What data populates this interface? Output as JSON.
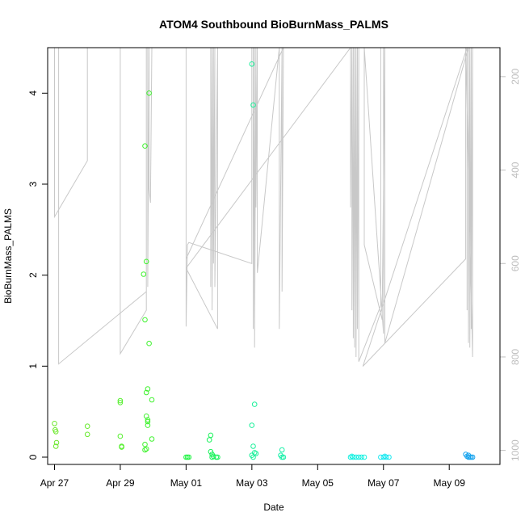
{
  "chart_data": {
    "type": "scatter",
    "title": "ATOM4 Southbound BioBurnMass_PALMS",
    "xlabel": "Date",
    "ylabel": "BioBurnMass_PALMS",
    "x_ticks": [
      "Apr 27",
      "Apr 29",
      "May 01",
      "May 03",
      "May 05",
      "May 07",
      "May 09"
    ],
    "xlim": [
      "2017-04-26T19:00",
      "2017-05-10T13:00"
    ],
    "ylim": [
      -0.08,
      4.5
    ],
    "y_ticks": [
      0,
      1,
      2,
      3,
      4
    ],
    "y2": {
      "label": "",
      "ticks": [
        200,
        400,
        600,
        800,
        1000
      ],
      "range_top_to_bottom": [
        138,
        1030
      ],
      "color": "#bdbdbd"
    },
    "grid": false,
    "series": [
      {
        "kind": "points",
        "points": [
          [
            "2017-04-27T00:00",
            0.37,
            "#6be82a"
          ],
          [
            "2017-04-27T00:30",
            0.3,
            "#6be82a"
          ],
          [
            "2017-04-27T01:00",
            0.28,
            "#6be82a"
          ],
          [
            "2017-04-27T01:30",
            0.16,
            "#6be82a"
          ],
          [
            "2017-04-27T01:00",
            0.12,
            "#6be82a"
          ],
          [
            "2017-04-28T00:00",
            0.34,
            "#66ea2c"
          ],
          [
            "2017-04-28T00:00",
            0.25,
            "#66ea2c"
          ],
          [
            "2017-04-29T00:00",
            0.62,
            "#55ef2d"
          ],
          [
            "2017-04-29T00:00",
            0.6,
            "#55ef2d"
          ],
          [
            "2017-04-29T00:00",
            0.23,
            "#55ef2d"
          ],
          [
            "2017-04-29T01:00",
            0.12,
            "#55ef2d"
          ],
          [
            "2017-04-29T01:00",
            0.11,
            "#55ef2d"
          ],
          [
            "2017-04-29T18:00",
            3.42,
            "#40f22f"
          ],
          [
            "2017-04-29T17:00",
            2.01,
            "#40f22f"
          ],
          [
            "2017-04-29T19:00",
            2.15,
            "#40f22f"
          ],
          [
            "2017-04-29T18:00",
            1.51,
            "#40f22f"
          ],
          [
            "2017-04-29T21:00",
            4.0,
            "#40f22f"
          ],
          [
            "2017-04-29T21:00",
            1.25,
            "#40f22f"
          ],
          [
            "2017-04-29T20:00",
            0.75,
            "#40f22f"
          ],
          [
            "2017-04-29T19:00",
            0.71,
            "#40f22f"
          ],
          [
            "2017-04-29T23:00",
            0.63,
            "#40f22f"
          ],
          [
            "2017-04-29T19:00",
            0.45,
            "#40f22f"
          ],
          [
            "2017-04-29T20:00",
            0.41,
            "#40f22f"
          ],
          [
            "2017-04-29T20:00",
            0.39,
            "#40f22f"
          ],
          [
            "2017-04-29T20:00",
            0.35,
            "#40f22f"
          ],
          [
            "2017-04-29T23:00",
            0.2,
            "#40f22f"
          ],
          [
            "2017-04-29T18:00",
            0.14,
            "#40f22f"
          ],
          [
            "2017-04-29T19:00",
            0.09,
            "#40f22f"
          ],
          [
            "2017-04-29T18:00",
            0.08,
            "#40f22f"
          ],
          [
            "2017-05-01T00:00",
            0.0,
            "#22f445"
          ],
          [
            "2017-05-01T01:00",
            0.0,
            "#22f445"
          ],
          [
            "2017-05-01T02:00",
            0.0,
            "#22f445"
          ],
          [
            "2017-05-01T18:00",
            0.24,
            "#18f25a"
          ],
          [
            "2017-05-01T17:00",
            0.19,
            "#18f25a"
          ],
          [
            "2017-05-01T18:00",
            0.06,
            "#18f25a"
          ],
          [
            "2017-05-01T19:00",
            0.03,
            "#18f25a"
          ],
          [
            "2017-05-01T20:00",
            0.01,
            "#18f25a"
          ],
          [
            "2017-05-01T22:00",
            0.0,
            "#18f25a"
          ],
          [
            "2017-05-01T23:00",
            0.0,
            "#18f25a"
          ],
          [
            "2017-05-01T19:00",
            0.0,
            "#18f25a"
          ],
          [
            "2017-05-03T00:00",
            4.32,
            "#1af09a"
          ],
          [
            "2017-05-03T01:00",
            3.87,
            "#1af09a"
          ],
          [
            "2017-05-03T02:00",
            0.58,
            "#1af09a"
          ],
          [
            "2017-05-03T00:00",
            0.35,
            "#1af09a"
          ],
          [
            "2017-05-03T01:00",
            0.12,
            "#1af09a"
          ],
          [
            "2017-05-03T02:00",
            0.05,
            "#1af09a"
          ],
          [
            "2017-05-03T03:00",
            0.04,
            "#1af09a"
          ],
          [
            "2017-05-03T00:00",
            0.02,
            "#1af09a"
          ],
          [
            "2017-05-03T01:00",
            0.0,
            "#1af09a"
          ],
          [
            "2017-05-03T22:00",
            0.08,
            "#18f0a8"
          ],
          [
            "2017-05-03T21:00",
            0.02,
            "#18f0a8"
          ],
          [
            "2017-05-03T22:00",
            0.0,
            "#18f0a8"
          ],
          [
            "2017-05-03T23:00",
            0.0,
            "#18f0a8"
          ],
          [
            "2017-05-06T00:00",
            0.0,
            "#14f0e0"
          ],
          [
            "2017-05-06T02:00",
            0.0,
            "#14f0e0"
          ],
          [
            "2017-05-06T04:00",
            0.0,
            "#14f0e0"
          ],
          [
            "2017-05-06T06:00",
            0.0,
            "#14f0e0"
          ],
          [
            "2017-05-06T08:00",
            0.0,
            "#14f0e0"
          ],
          [
            "2017-05-06T10:00",
            0.0,
            "#14f0e0"
          ],
          [
            "2017-05-06T01:00",
            0.01,
            "#14f0e0"
          ],
          [
            "2017-05-06T22:00",
            0.0,
            "#16e8f0"
          ],
          [
            "2017-05-07T00:00",
            0.0,
            "#16e8f0"
          ],
          [
            "2017-05-07T02:00",
            0.0,
            "#16e8f0"
          ],
          [
            "2017-05-07T04:00",
            0.0,
            "#16e8f0"
          ],
          [
            "2017-05-07T01:00",
            0.01,
            "#16e8f0"
          ],
          [
            "2017-05-09T12:00",
            0.03,
            "#1aa4ee"
          ],
          [
            "2017-05-09T13:00",
            0.01,
            "#1aa4ee"
          ],
          [
            "2017-05-09T14:00",
            0.0,
            "#1aa4ee"
          ],
          [
            "2017-05-09T15:00",
            0.0,
            "#1aa4ee"
          ],
          [
            "2017-05-09T16:00",
            0.0,
            "#1aa4ee"
          ],
          [
            "2017-05-09T17:00",
            0.0,
            "#1aa4ee"
          ],
          [
            "2017-05-09T14:00",
            0.02,
            "#1aa4ee"
          ]
        ]
      },
      {
        "kind": "line",
        "axis": "y2",
        "color": "#c8c8c8",
        "points": [
          [
            "2017-04-27T00:00",
            138
          ],
          [
            "2017-04-27T00:00",
            500
          ],
          [
            "2017-04-28T00:00",
            380
          ],
          [
            "2017-04-28T00:00",
            138
          ],
          [
            "2017-04-27T03:00",
            138
          ],
          [
            "2017-04-27T03:00",
            815
          ],
          [
            "2017-04-29T19:00",
            660
          ],
          [
            "2017-04-29T19:00",
            138
          ],
          [
            "2017-04-29T00:00",
            138
          ],
          [
            "2017-04-29T00:00",
            793
          ],
          [
            "2017-04-29T19:00",
            700
          ],
          [
            "2017-04-29T19:00",
            138
          ],
          [
            "2017-04-29T20:00",
            138
          ],
          [
            "2017-04-29T20:00",
            650
          ],
          [
            "2017-04-29T21:00",
            138
          ],
          [
            "2017-04-29T21:00",
            440
          ],
          [
            "2017-04-29T22:00",
            470
          ],
          [
            "2017-04-29T23:00",
            138
          ],
          [
            "2017-05-01T00:00",
            138
          ],
          [
            "2017-05-01T00:00",
            735
          ],
          [
            "2017-05-01T01:00",
            560
          ],
          [
            "2017-05-01T02:00",
            555
          ],
          [
            "2017-05-03T00:00",
            600
          ],
          [
            "2017-05-03T00:00",
            138
          ],
          [
            "2017-05-03T01:00",
            138
          ],
          [
            "2017-05-03T01:00",
            740
          ],
          [
            "2017-05-03T02:00",
            138
          ],
          [
            "2017-05-03T02:00",
            780
          ],
          [
            "2017-05-03T03:00",
            138
          ],
          [
            "2017-05-03T03:00",
            480
          ],
          [
            "2017-05-03T04:00",
            138
          ],
          [
            "2017-05-03T04:00",
            620
          ],
          [
            "2017-05-03T20:00",
            138
          ],
          [
            "2017-05-03T20:00",
            740
          ],
          [
            "2017-05-03T22:00",
            138
          ],
          [
            "2017-05-03T22:00",
            660
          ],
          [
            "2017-05-03T23:00",
            138
          ],
          [
            "2017-05-01T00:00",
            590
          ],
          [
            "2017-05-01T00:00",
            138
          ],
          [
            "2017-05-01T18:00",
            138
          ],
          [
            "2017-05-01T18:00",
            650
          ],
          [
            "2017-05-01T19:00",
            138
          ],
          [
            "2017-05-01T19:00",
            700
          ],
          [
            "2017-05-01T20:00",
            138
          ],
          [
            "2017-05-01T20:00",
            600
          ],
          [
            "2017-05-01T21:00",
            138
          ],
          [
            "2017-05-01T21:00",
            650
          ],
          [
            "2017-05-01T23:00",
            138
          ],
          [
            "2017-05-01T23:00",
            740
          ],
          [
            "2017-05-01T00:00",
            610
          ],
          [
            "2017-05-06T00:00",
            138
          ],
          [
            "2017-05-06T00:00",
            480
          ],
          [
            "2017-05-06T01:00",
            138
          ],
          [
            "2017-05-06T01:00",
            700
          ],
          [
            "2017-05-06T02:00",
            138
          ],
          [
            "2017-05-06T02:00",
            760
          ],
          [
            "2017-05-06T03:00",
            138
          ],
          [
            "2017-05-06T03:00",
            780
          ],
          [
            "2017-05-06T04:00",
            138
          ],
          [
            "2017-05-06T04:00",
            800
          ],
          [
            "2017-05-06T05:00",
            138
          ],
          [
            "2017-05-06T05:00",
            740
          ],
          [
            "2017-05-06T06:00",
            138
          ],
          [
            "2017-05-06T06:00",
            810
          ],
          [
            "2017-05-06T22:00",
            690
          ],
          [
            "2017-05-06T22:00",
            138
          ],
          [
            "2017-05-07T00:00",
            138
          ],
          [
            "2017-05-07T00:00",
            750
          ],
          [
            "2017-05-06T10:00",
            138
          ],
          [
            "2017-05-06T10:00",
            560
          ],
          [
            "2017-05-06T23:00",
            720
          ],
          [
            "2017-05-07T01:00",
            138
          ],
          [
            "2017-05-07T01:00",
            770
          ],
          [
            "2017-05-09T14:00",
            138
          ],
          [
            "2017-05-09T14:00",
            770
          ],
          [
            "2017-05-09T15:00",
            138
          ],
          [
            "2017-05-09T15:00",
            780
          ],
          [
            "2017-05-09T16:00",
            138
          ],
          [
            "2017-05-09T16:00",
            740
          ],
          [
            "2017-05-09T17:00",
            138
          ],
          [
            "2017-05-09T17:00",
            800
          ],
          [
            "2017-05-09T12:00",
            138
          ],
          [
            "2017-05-09T12:00",
            590
          ],
          [
            "2017-05-06T09:00",
            820
          ],
          [
            "2017-05-09T13:00",
            138
          ],
          [
            "2017-05-09T13:00",
            700
          ]
        ]
      }
    ]
  }
}
